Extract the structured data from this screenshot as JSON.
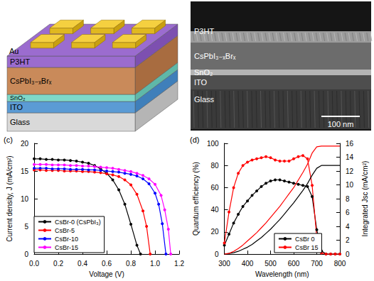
{
  "schematic": {
    "layers": [
      "Au",
      "P3HT",
      "CsPbI₃₋ₓBrₓ",
      "SnO₂",
      "ITO",
      "Glass"
    ]
  },
  "sem_image": {
    "layers": [
      "P3HT",
      "CsPbI₃₋ₓBrₓ",
      "SnO₂",
      "ITO",
      "Glass"
    ],
    "scale_bar": "100 nm"
  },
  "chart_data": [
    {
      "type": "line",
      "title": "(c)",
      "x_label": "Voltage (V)",
      "y_label": "Current density, J (mA/cm²)",
      "xlim": [
        0,
        1.2
      ],
      "xticks": [
        {
          "value": 0,
          "label": "0.0"
        },
        {
          "value": 0.2,
          "label": "0.2"
        },
        {
          "value": 0.4,
          "label": "0.4"
        },
        {
          "value": 0.6,
          "label": "0.6"
        },
        {
          "value": 0.8,
          "label": "0.8"
        },
        {
          "value": 1,
          "label": "1.0"
        },
        {
          "value": 1.2,
          "label": "1.2"
        }
      ],
      "ylim": [
        0,
        20
      ],
      "yticks": [
        0,
        5,
        10,
        15,
        20
      ],
      "grid": false,
      "legend": "lower left",
      "marker": "circle",
      "series": [
        {
          "name": "CsBr-0 (CsPbI₃)",
          "color": "#000000",
          "x": [
            0,
            0.05,
            0.1,
            0.15,
            0.2,
            0.25,
            0.3,
            0.35,
            0.4,
            0.45,
            0.5,
            0.55,
            0.6,
            0.65,
            0.7,
            0.75,
            0.8,
            0.85,
            0.88
          ],
          "values": [
            17.2,
            17.2,
            17.1,
            17.1,
            17.0,
            17.0,
            16.9,
            16.8,
            16.6,
            16.4,
            16.0,
            15.4,
            14.6,
            13.4,
            11.6,
            9.0,
            5.4,
            1.6,
            0
          ]
        },
        {
          "name": "CsBr-5",
          "color": "#ff0000",
          "x": [
            0,
            0.05,
            0.1,
            0.15,
            0.2,
            0.25,
            0.3,
            0.35,
            0.4,
            0.45,
            0.5,
            0.55,
            0.6,
            0.65,
            0.7,
            0.75,
            0.8,
            0.85,
            0.9,
            0.93,
            0.96
          ],
          "values": [
            15.2,
            15.2,
            15.1,
            15.1,
            15.1,
            15.0,
            15.0,
            15.0,
            14.9,
            14.9,
            14.8,
            14.7,
            14.5,
            14.3,
            14.0,
            13.4,
            12.5,
            10.8,
            7.8,
            5.0,
            0
          ]
        },
        {
          "name": "CsBr-10",
          "color": "#0000ff",
          "x": [
            0,
            0.05,
            0.1,
            0.15,
            0.2,
            0.25,
            0.3,
            0.35,
            0.4,
            0.45,
            0.5,
            0.55,
            0.6,
            0.65,
            0.7,
            0.75,
            0.8,
            0.85,
            0.9,
            0.95,
            1.0,
            1.03,
            1.06,
            1.09
          ],
          "values": [
            15.5,
            15.5,
            15.5,
            15.4,
            15.4,
            15.4,
            15.3,
            15.3,
            15.3,
            15.2,
            15.2,
            15.1,
            15.0,
            14.9,
            14.8,
            14.6,
            14.4,
            14.1,
            13.6,
            12.7,
            11.0,
            9.0,
            5.5,
            0
          ]
        },
        {
          "name": "CsBr-15",
          "color": "#ff00ff",
          "x": [
            0,
            0.05,
            0.1,
            0.15,
            0.2,
            0.25,
            0.3,
            0.35,
            0.4,
            0.45,
            0.5,
            0.55,
            0.6,
            0.65,
            0.7,
            0.75,
            0.8,
            0.85,
            0.9,
            0.95,
            1.0,
            1.05,
            1.08,
            1.11,
            1.13
          ],
          "values": [
            16.2,
            16.2,
            16.2,
            16.1,
            16.1,
            16.1,
            16.0,
            16.0,
            15.9,
            15.9,
            15.8,
            15.7,
            15.6,
            15.5,
            15.3,
            15.1,
            14.9,
            14.6,
            14.2,
            13.6,
            12.6,
            10.6,
            8.0,
            4.5,
            0
          ]
        }
      ]
    },
    {
      "type": "line",
      "title": "(d)",
      "x_label": "Wavelength (nm)",
      "y_label": "Quantum efficiency (%)",
      "y2_label": "Integrated Jsc (mA/cm²)",
      "x": [
        300,
        320,
        340,
        360,
        380,
        400,
        420,
        440,
        460,
        480,
        500,
        520,
        540,
        560,
        580,
        600,
        620,
        640,
        660,
        680,
        700,
        720,
        740,
        760,
        780,
        800
      ],
      "xlim": [
        300,
        800
      ],
      "xticks": [
        300,
        400,
        500,
        600,
        700,
        800
      ],
      "ylim": [
        0,
        100
      ],
      "yticks": [
        0,
        20,
        40,
        60,
        80,
        100
      ],
      "y2lim": [
        0,
        16
      ],
      "y2ticks": [
        0,
        2,
        4,
        6,
        8,
        10,
        12,
        14,
        16
      ],
      "grid": false,
      "legend": "lower center",
      "marker": "circle",
      "series": [
        {
          "name": "CsBr 0",
          "color": "#000000",
          "values": [
            8,
            18,
            28,
            36,
            43,
            48,
            53,
            57,
            61,
            64,
            66,
            67,
            67,
            66,
            65,
            64,
            63,
            62,
            61,
            52,
            22,
            3,
            0,
            0,
            0,
            0
          ]
        },
        {
          "name": "CsBr 15",
          "color": "#ff0000",
          "values": [
            10,
            38,
            60,
            73,
            80,
            83,
            85,
            86,
            87,
            88,
            87,
            85,
            84,
            84,
            84,
            86,
            88,
            89,
            86,
            62,
            15,
            1,
            0,
            0,
            0,
            0
          ]
        },
        {
          "color": "#000000",
          "axis": "y2",
          "marker": "none",
          "values": [
            0,
            0.1,
            0.2,
            0.4,
            0.7,
            1.0,
            1.4,
            1.9,
            2.4,
            3.0,
            3.6,
            4.3,
            5.0,
            5.8,
            6.6,
            7.4,
            8.3,
            9.2,
            10.2,
            11.4,
            12.4,
            12.8,
            12.8,
            12.8,
            12.8,
            12.8
          ]
        },
        {
          "color": "#ff0000",
          "axis": "y2",
          "marker": "none",
          "values": [
            0,
            0.1,
            0.4,
            0.8,
            1.3,
            1.9,
            2.5,
            3.1,
            3.8,
            4.5,
            5.3,
            6.1,
            6.9,
            7.8,
            8.7,
            9.6,
            10.7,
            11.8,
            13.0,
            14.6,
            15.5,
            15.6,
            15.6,
            15.6,
            15.6,
            15.6
          ]
        }
      ]
    }
  ]
}
